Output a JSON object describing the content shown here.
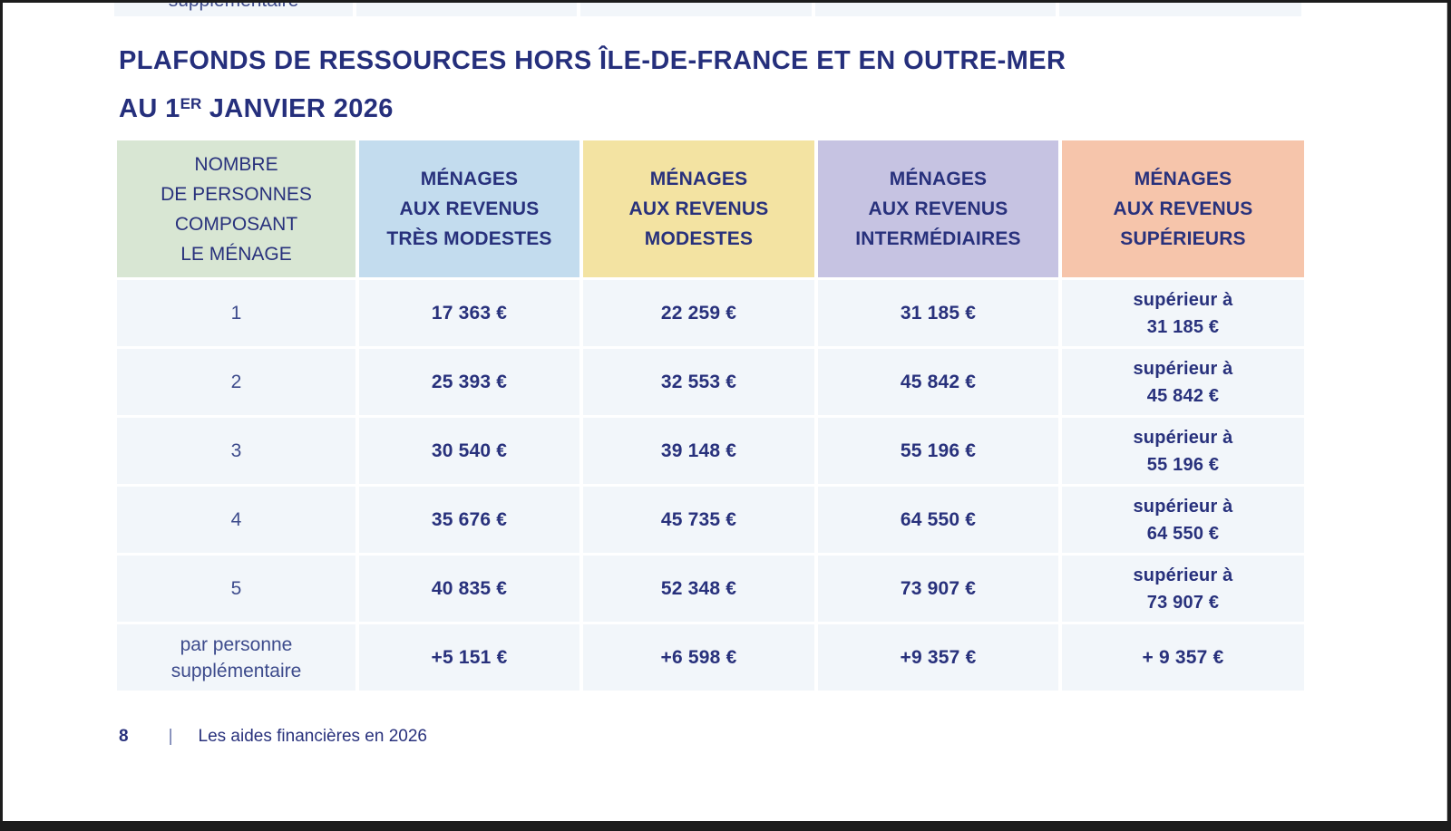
{
  "page": {
    "title_line1": "PLAFONDS DE RESSOURCES HORS ÎLE-DE-FRANCE ET EN OUTRE-MER",
    "title_line2_prefix": "AU 1",
    "title_line2_sup": "ER",
    "title_line2_suffix": " JANVIER 2026"
  },
  "previous_table_fragment": {
    "clipped_text": "supplémentaire"
  },
  "table": {
    "header": {
      "household": "NOMBRE\nDE PERSONNES\nCOMPOSANT\nLE MÉNAGE",
      "tres_modestes": "MÉNAGES\nAUX REVENUS\nTRÈS MODESTES",
      "modestes": "MÉNAGES\nAUX REVENUS\nMODESTES",
      "intermediaires": "MÉNAGES\nAUX REVENUS\nINTERMÉDIAIRES",
      "superieurs": "MÉNAGES\nAUX REVENUS\nSUPÉRIEURS"
    },
    "rows": [
      {
        "household": "1",
        "tres_modestes": "17 363 €",
        "modestes": "22 259 €",
        "intermediaires": "31 185 €",
        "superieurs": "supérieur à\n31 185 €"
      },
      {
        "household": "2",
        "tres_modestes": "25 393 €",
        "modestes": "32 553 €",
        "intermediaires": "45 842 €",
        "superieurs": "supérieur à\n45 842 €"
      },
      {
        "household": "3",
        "tres_modestes": "30 540 €",
        "modestes": "39 148 €",
        "intermediaires": "55 196 €",
        "superieurs": "supérieur à\n55 196 €"
      },
      {
        "household": "4",
        "tres_modestes": "35 676 €",
        "modestes": "45 735 €",
        "intermediaires": "64 550 €",
        "superieurs": "supérieur à\n64 550 €"
      },
      {
        "household": "5",
        "tres_modestes": "40 835 €",
        "modestes": "52 348 €",
        "intermediaires": "73 907 €",
        "superieurs": "supérieur à\n73 907 €"
      },
      {
        "household": "par personne\nsupplémentaire",
        "tres_modestes": "+5 151 €",
        "modestes": "+6 598 €",
        "intermediaires": "+9 357 €",
        "superieurs": "+ 9 357 €"
      }
    ]
  },
  "footer": {
    "page_number": "8",
    "separator": "|",
    "label": "Les aides financières en 2026"
  },
  "colors": {
    "header_household_bg": "#d8e6d3",
    "header_tres_modestes_bg": "#c3dcee",
    "header_modestes_bg": "#f3e3a2",
    "header_intermediaires_bg": "#c6c3e2",
    "header_superieurs_bg": "#f6c5ab",
    "data_cell_bg": "#f2f6fa",
    "text_navy": "#28317c",
    "page_bg": "#ffffff"
  }
}
